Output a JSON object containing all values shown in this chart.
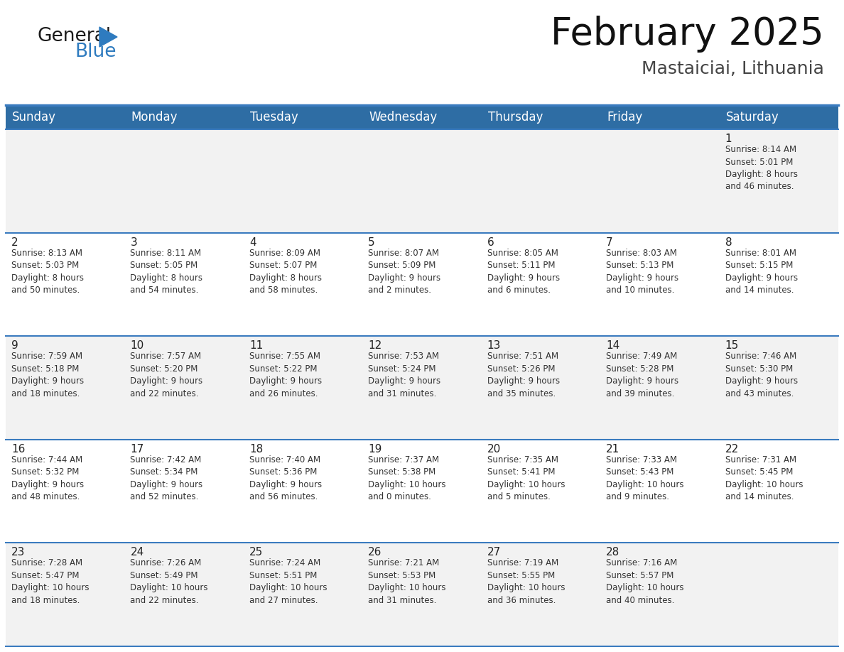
{
  "title": "February 2025",
  "subtitle": "Mastaiciai, Lithuania",
  "header_bg": "#2e6da4",
  "header_text_color": "#ffffff",
  "day_headers": [
    "Sunday",
    "Monday",
    "Tuesday",
    "Wednesday",
    "Thursday",
    "Friday",
    "Saturday"
  ],
  "title_fontsize": 38,
  "subtitle_fontsize": 18,
  "header_fontsize": 12,
  "day_num_fontsize": 11,
  "cell_fontsize": 8.5,
  "logo_general_color": "#1a1a1a",
  "logo_blue_color": "#2e7bbf",
  "border_color": "#3a7bbf",
  "cell_bg_light": "#f2f2f2",
  "cell_bg_white": "#ffffff",
  "weeks": [
    [
      {
        "day": null,
        "info": null
      },
      {
        "day": null,
        "info": null
      },
      {
        "day": null,
        "info": null
      },
      {
        "day": null,
        "info": null
      },
      {
        "day": null,
        "info": null
      },
      {
        "day": null,
        "info": null
      },
      {
        "day": 1,
        "info": "Sunrise: 8:14 AM\nSunset: 5:01 PM\nDaylight: 8 hours\nand 46 minutes."
      }
    ],
    [
      {
        "day": 2,
        "info": "Sunrise: 8:13 AM\nSunset: 5:03 PM\nDaylight: 8 hours\nand 50 minutes."
      },
      {
        "day": 3,
        "info": "Sunrise: 8:11 AM\nSunset: 5:05 PM\nDaylight: 8 hours\nand 54 minutes."
      },
      {
        "day": 4,
        "info": "Sunrise: 8:09 AM\nSunset: 5:07 PM\nDaylight: 8 hours\nand 58 minutes."
      },
      {
        "day": 5,
        "info": "Sunrise: 8:07 AM\nSunset: 5:09 PM\nDaylight: 9 hours\nand 2 minutes."
      },
      {
        "day": 6,
        "info": "Sunrise: 8:05 AM\nSunset: 5:11 PM\nDaylight: 9 hours\nand 6 minutes."
      },
      {
        "day": 7,
        "info": "Sunrise: 8:03 AM\nSunset: 5:13 PM\nDaylight: 9 hours\nand 10 minutes."
      },
      {
        "day": 8,
        "info": "Sunrise: 8:01 AM\nSunset: 5:15 PM\nDaylight: 9 hours\nand 14 minutes."
      }
    ],
    [
      {
        "day": 9,
        "info": "Sunrise: 7:59 AM\nSunset: 5:18 PM\nDaylight: 9 hours\nand 18 minutes."
      },
      {
        "day": 10,
        "info": "Sunrise: 7:57 AM\nSunset: 5:20 PM\nDaylight: 9 hours\nand 22 minutes."
      },
      {
        "day": 11,
        "info": "Sunrise: 7:55 AM\nSunset: 5:22 PM\nDaylight: 9 hours\nand 26 minutes."
      },
      {
        "day": 12,
        "info": "Sunrise: 7:53 AM\nSunset: 5:24 PM\nDaylight: 9 hours\nand 31 minutes."
      },
      {
        "day": 13,
        "info": "Sunrise: 7:51 AM\nSunset: 5:26 PM\nDaylight: 9 hours\nand 35 minutes."
      },
      {
        "day": 14,
        "info": "Sunrise: 7:49 AM\nSunset: 5:28 PM\nDaylight: 9 hours\nand 39 minutes."
      },
      {
        "day": 15,
        "info": "Sunrise: 7:46 AM\nSunset: 5:30 PM\nDaylight: 9 hours\nand 43 minutes."
      }
    ],
    [
      {
        "day": 16,
        "info": "Sunrise: 7:44 AM\nSunset: 5:32 PM\nDaylight: 9 hours\nand 48 minutes."
      },
      {
        "day": 17,
        "info": "Sunrise: 7:42 AM\nSunset: 5:34 PM\nDaylight: 9 hours\nand 52 minutes."
      },
      {
        "day": 18,
        "info": "Sunrise: 7:40 AM\nSunset: 5:36 PM\nDaylight: 9 hours\nand 56 minutes."
      },
      {
        "day": 19,
        "info": "Sunrise: 7:37 AM\nSunset: 5:38 PM\nDaylight: 10 hours\nand 0 minutes."
      },
      {
        "day": 20,
        "info": "Sunrise: 7:35 AM\nSunset: 5:41 PM\nDaylight: 10 hours\nand 5 minutes."
      },
      {
        "day": 21,
        "info": "Sunrise: 7:33 AM\nSunset: 5:43 PM\nDaylight: 10 hours\nand 9 minutes."
      },
      {
        "day": 22,
        "info": "Sunrise: 7:31 AM\nSunset: 5:45 PM\nDaylight: 10 hours\nand 14 minutes."
      }
    ],
    [
      {
        "day": 23,
        "info": "Sunrise: 7:28 AM\nSunset: 5:47 PM\nDaylight: 10 hours\nand 18 minutes."
      },
      {
        "day": 24,
        "info": "Sunrise: 7:26 AM\nSunset: 5:49 PM\nDaylight: 10 hours\nand 22 minutes."
      },
      {
        "day": 25,
        "info": "Sunrise: 7:24 AM\nSunset: 5:51 PM\nDaylight: 10 hours\nand 27 minutes."
      },
      {
        "day": 26,
        "info": "Sunrise: 7:21 AM\nSunset: 5:53 PM\nDaylight: 10 hours\nand 31 minutes."
      },
      {
        "day": 27,
        "info": "Sunrise: 7:19 AM\nSunset: 5:55 PM\nDaylight: 10 hours\nand 36 minutes."
      },
      {
        "day": 28,
        "info": "Sunrise: 7:16 AM\nSunset: 5:57 PM\nDaylight: 10 hours\nand 40 minutes."
      },
      {
        "day": null,
        "info": null
      }
    ]
  ]
}
